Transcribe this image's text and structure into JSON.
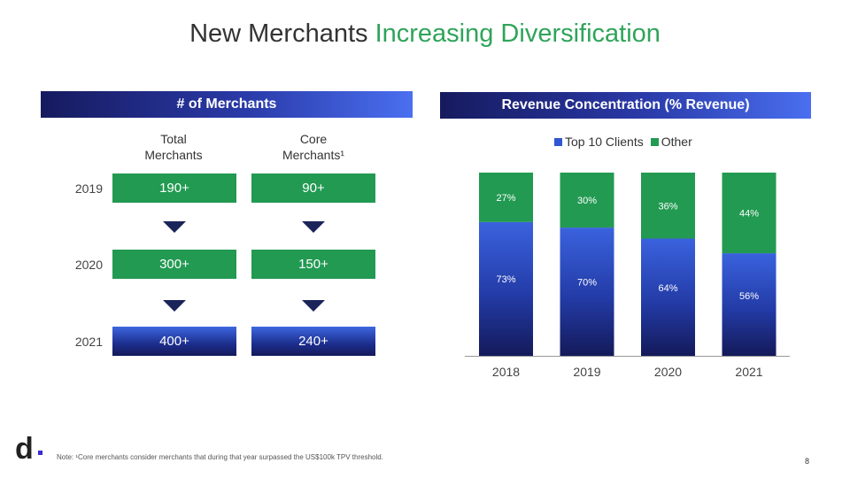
{
  "title": {
    "part1": "New Merchants ",
    "part2": "Increasing Diversification"
  },
  "left_panel": {
    "header": "# of Merchants",
    "col1_line1": "Total",
    "col1_line2": "Merchants",
    "col2_line1": "Core",
    "col2_line2": "Merchants¹",
    "rows": [
      {
        "year": "2019",
        "total": "190+",
        "core": "90+"
      },
      {
        "year": "2020",
        "total": "300+",
        "core": "150+"
      },
      {
        "year": "2021",
        "total": "400+",
        "core": "240+"
      }
    ]
  },
  "chart_data": {
    "type": "bar",
    "stacked": true,
    "title": "Revenue Concentration (% Revenue)",
    "categories": [
      "2018",
      "2019",
      "2020",
      "2021"
    ],
    "series": [
      {
        "name": "Top 10 Clients",
        "values": [
          73,
          70,
          64,
          56
        ],
        "labels": [
          "73%",
          "70%",
          "64%",
          "56%"
        ],
        "color": "#2f56d4"
      },
      {
        "name": "Other",
        "values": [
          27,
          30,
          36,
          44
        ],
        "labels": [
          "27%",
          "30%",
          "36%",
          "44%"
        ],
        "color": "#229a52"
      }
    ],
    "ylim": [
      0,
      100
    ],
    "legend": "top",
    "grid": false
  },
  "colors": {
    "accent_green": "#2fa45a",
    "box_green": "#229a52",
    "navy": "#1b2459"
  },
  "footer": {
    "logo": "d",
    "note": "Note: ¹Core merchants consider merchants that during that year surpassed the US$100k TPV threshold.",
    "page": "8"
  }
}
